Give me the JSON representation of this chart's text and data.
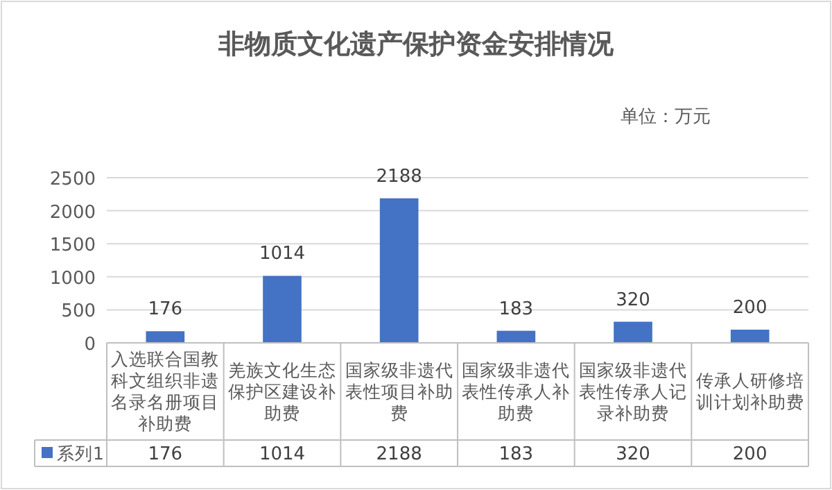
{
  "chart_data": {
    "type": "bar",
    "title": "非物质文化遗产保护资金安排情况",
    "annotations": [
      "单位：万元"
    ],
    "categories": [
      "入选联合国教科文组织非遗名录名册项目补助费",
      "羌族文化生态保护区建设补助费",
      "国家级非遗代表性项目补助费",
      "国家级非遗代表性传承人补助费",
      "国家级非遗代表性传承人记录补助费",
      "传承人研修培训计划补助费"
    ],
    "series": [
      {
        "name": "系列1",
        "color": "#4472c4",
        "values": [
          176,
          1014,
          2188,
          183,
          320,
          200
        ],
        "value_labels": [
          "176",
          "1014",
          "2188",
          "183",
          "320",
          "200"
        ]
      }
    ],
    "ylim": [
      0,
      2500
    ],
    "yticks": [
      0,
      500,
      1000,
      1500,
      2000,
      2500
    ],
    "grid": "y",
    "data_labels": true,
    "legend": "bottom"
  }
}
